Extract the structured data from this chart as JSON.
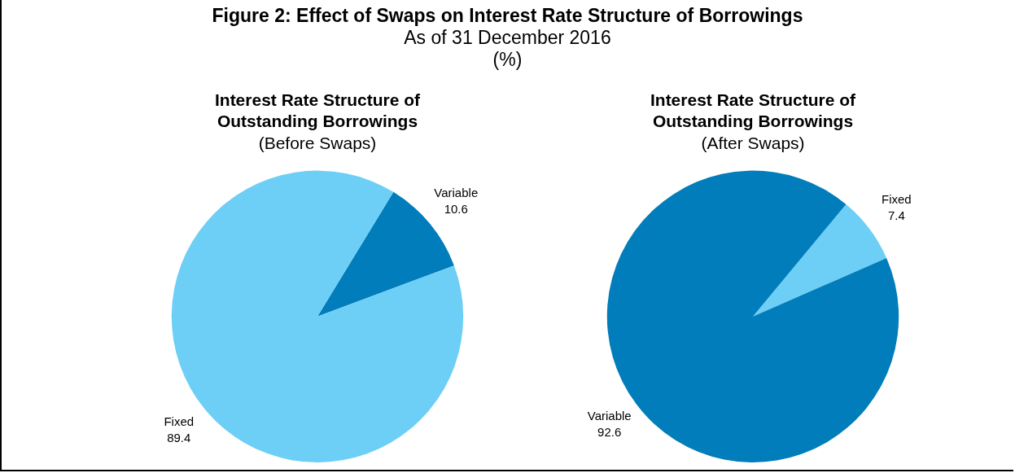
{
  "chart_data": [
    {
      "type": "other",
      "title": "Figure 2: Effect of Swaps on Interest Rate Structure of Borrowings",
      "subtitle": "As of 31 December 2016",
      "annotations": [
        "(%)"
      ]
    },
    {
      "type": "pie",
      "title": "Interest Rate Structure of Outstanding Borrowings",
      "subtitle": "(Before Swaps)",
      "categories": [
        "Variable",
        "Fixed"
      ],
      "values": [
        10.6,
        89.4
      ],
      "colors": [
        "#007dba",
        "#6dcff6"
      ],
      "data_labels": true
    },
    {
      "type": "pie",
      "title": "Interest Rate Structure of Outstanding Borrowings",
      "subtitle": "(After Swaps)",
      "categories": [
        "Fixed",
        "Variable"
      ],
      "values": [
        7.4,
        92.6
      ],
      "colors": [
        "#6dcff6",
        "#007dba"
      ],
      "data_labels": true
    }
  ]
}
